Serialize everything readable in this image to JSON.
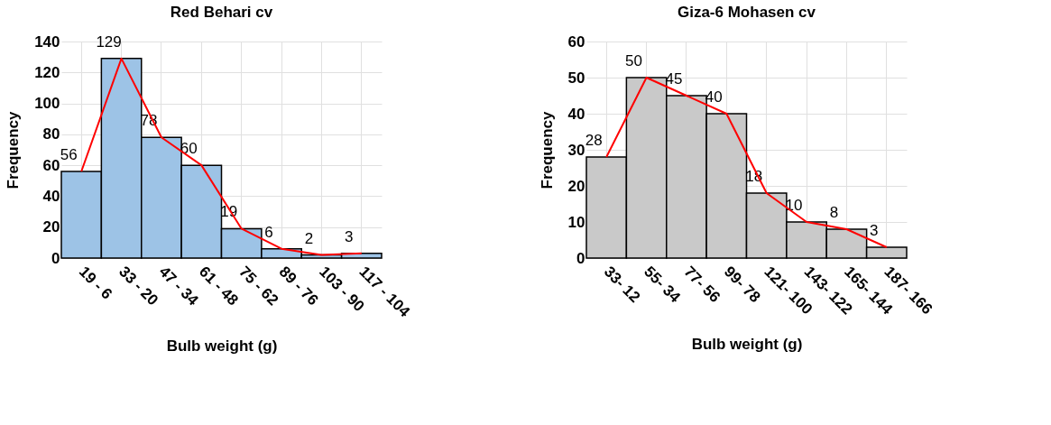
{
  "chart_data": [
    {
      "type": "bar",
      "title": "Red Behari cv",
      "xlabel": "Bulb weight (g)",
      "ylabel": "Frequency",
      "categories": [
        "19 - 6",
        "33 - 20",
        "47 - 34",
        "61 - 48",
        "75 - 62",
        "89 - 76",
        "103 - 90",
        "117 - 104"
      ],
      "series": [
        {
          "color": "#9dc3e6",
          "values": [
            56,
            129,
            78,
            60,
            19,
            6,
            2,
            3
          ],
          "value_labels": [
            "56",
            "129",
            "78",
            "60",
            "19",
            "6",
            "2",
            "3"
          ]
        },
        {
          "type": "line",
          "color": "#ff0000",
          "values": [
            56,
            129,
            78,
            60,
            19,
            6,
            2,
            3
          ]
        }
      ],
      "ylim": [
        0,
        140
      ],
      "yticks": [
        0,
        20,
        40,
        60,
        80,
        100,
        120,
        140
      ],
      "grid": true
    },
    {
      "type": "bar",
      "title": "Giza-6 Mohasen cv",
      "xlabel": "Bulb weight (g)",
      "ylabel": "Frequency",
      "categories": [
        "33- 12",
        "55- 34",
        "77- 56",
        "99- 78",
        "121- 100",
        "143- 122",
        "165- 144",
        "187- 166"
      ],
      "series": [
        {
          "color": "#c9c9c9",
          "values": [
            28,
            50,
            45,
            40,
            18,
            10,
            8,
            3
          ],
          "value_labels": [
            "28",
            "50",
            "45",
            "40",
            "18",
            "10",
            "8",
            "3"
          ]
        },
        {
          "type": "line",
          "color": "#ff0000",
          "values": [
            28,
            50,
            45,
            40,
            18,
            10,
            8,
            3
          ]
        }
      ],
      "ylim": [
        0,
        60
      ],
      "yticks": [
        0,
        10,
        20,
        30,
        40,
        50,
        60
      ],
      "grid": true
    }
  ]
}
